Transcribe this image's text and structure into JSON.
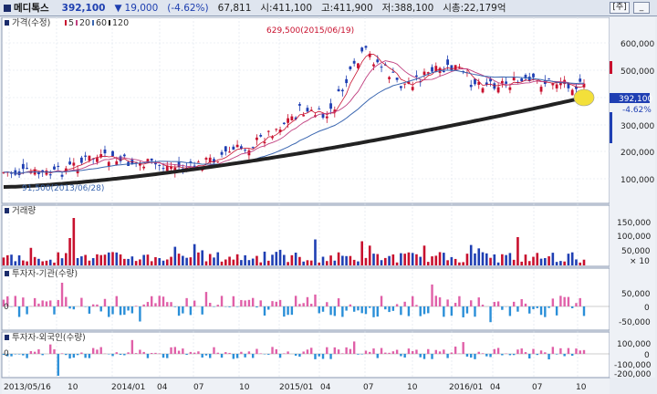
{
  "header": {
    "stock_name": "메디톡스",
    "price": "392,100",
    "change": "19,000",
    "change_pct": "(-4.62%)",
    "volume": "67,811",
    "open_label": "시:411,100",
    "high_label": "고:411,900",
    "low_label": "저:388,100",
    "market_cap_label": "시총:22,179억",
    "btn_main": "[주]",
    "btn_min": "_"
  },
  "price_panel": {
    "legend_title": "가격(수정)",
    "legend_ma": [
      "5",
      "20",
      "60",
      "120"
    ],
    "annotation_high": "629,500(2015/06/19)",
    "annotation_low": "91,500(2013/06/28)",
    "current_price_tag": "392,100",
    "current_change_tag": "-4.62%",
    "y_ticks": [
      "600,000",
      "500,000",
      "400,000",
      "300,000",
      "200,000",
      "100,000"
    ]
  },
  "volume_panel": {
    "title": "거래량",
    "y_ticks": [
      "150,000",
      "100,000",
      "50,000"
    ],
    "multiplier": "× 10"
  },
  "inst_panel": {
    "title": "투자자-기관(수량)",
    "zero_tag": "0",
    "y_ticks": [
      "50,000",
      "0",
      "-50,000"
    ]
  },
  "foreign_panel": {
    "title": "투자자-외국인(수량)",
    "zero_tag": "0",
    "y_ticks": [
      "100,000",
      "0",
      "-100,000",
      "-200,000"
    ]
  },
  "x_axis": {
    "labels": [
      "2013/05/16",
      "10",
      "2014/01",
      "04",
      "07",
      "10",
      "2015/01",
      "04",
      "07",
      "10",
      "2016/01",
      "04",
      "07",
      "10"
    ]
  },
  "colors": {
    "up": "#c8102e",
    "down": "#1f3fb3",
    "ma5": "#c8102e",
    "ma20": "#c04080",
    "ma60": "#3a66b0",
    "ma120": "#222222",
    "inst_pos": "#e060a8",
    "inst_neg": "#2a8fd8",
    "highlight": "#f3e03a"
  }
}
